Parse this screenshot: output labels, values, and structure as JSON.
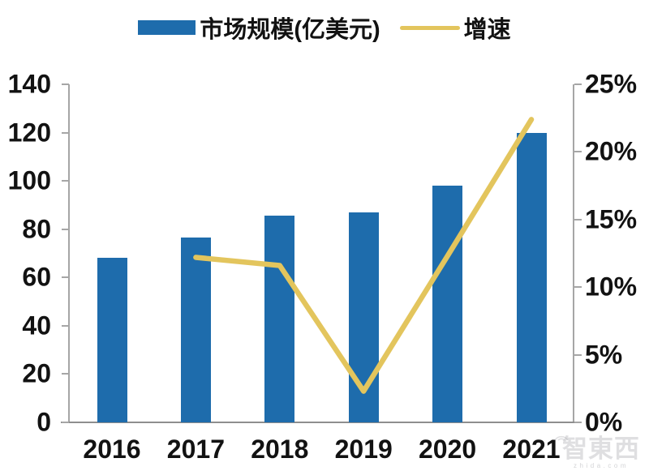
{
  "colors": {
    "bar": "#1E6CAC",
    "line": "#E3C55D",
    "axis": "#A6A6A6",
    "axis_baseline": "#8E8E8E",
    "text": "#121212"
  },
  "legend": {
    "series1": "市场规模(亿美元)",
    "series2": "增速"
  },
  "left_axis": {
    "ticks": [
      "140",
      "120",
      "100",
      "80",
      "60",
      "40",
      "20",
      "0"
    ],
    "min": 0,
    "max": 140
  },
  "right_axis": {
    "ticks": [
      "25%",
      "20%",
      "15%",
      "10%",
      "5%",
      "0%"
    ],
    "min": 0,
    "max": 25
  },
  "x_axis": {
    "categories": [
      "2016",
      "2017",
      "2018",
      "2019",
      "2020",
      "2021"
    ]
  },
  "watermark": {
    "logo": "智東西",
    "domain": "zhida.com"
  },
  "chart_data": {
    "type": "bar",
    "subtype": "combo-bar-line-dual-axis",
    "title": "",
    "categories": [
      "2016",
      "2017",
      "2018",
      "2019",
      "2020",
      "2021"
    ],
    "series": [
      {
        "name": "市场规模(亿美元)",
        "type": "bar",
        "axis": "left",
        "values": [
          68,
          76.5,
          85.5,
          87,
          98,
          120
        ]
      },
      {
        "name": "增速",
        "type": "line",
        "axis": "right",
        "unit": "%",
        "values": [
          null,
          12.2,
          11.6,
          2.3,
          12.3,
          22.4
        ]
      }
    ],
    "left_ylim": [
      0,
      140
    ],
    "right_ylim": [
      0,
      25
    ],
    "left_tick_step": 20,
    "right_tick_step": 5,
    "grid": false,
    "legend_position": "top-center"
  }
}
